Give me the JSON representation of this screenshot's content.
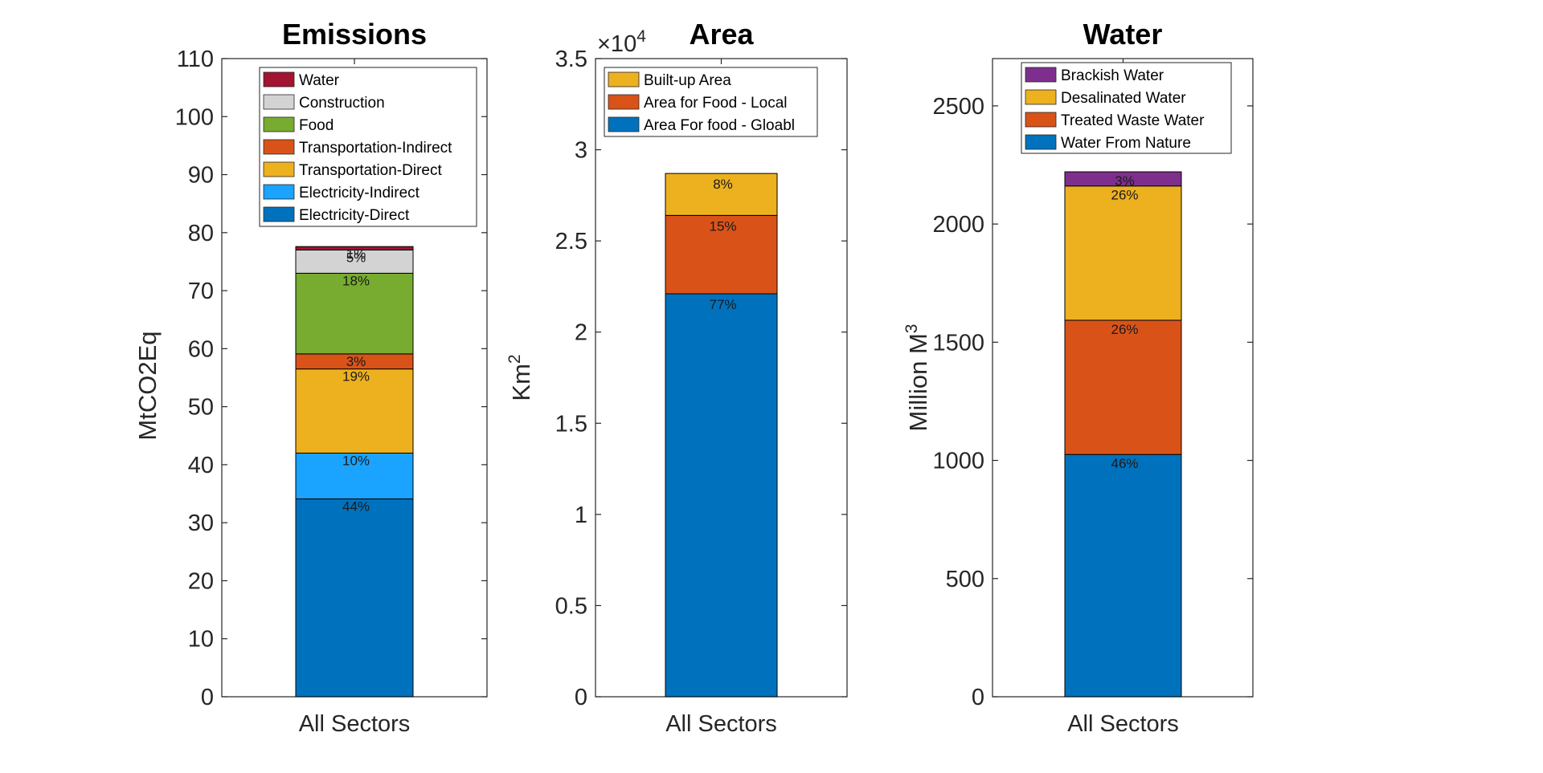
{
  "chart_data": [
    {
      "type": "bar",
      "stacked": true,
      "title": "Emissions",
      "xlabel": "",
      "ylabel": "MtCO2Eq",
      "categories": [
        "All Sectors"
      ],
      "ylim": [
        0,
        110
      ],
      "yticks": [
        "0",
        "10",
        "20",
        "30",
        "40",
        "50",
        "60",
        "70",
        "80",
        "90",
        "100",
        "110"
      ],
      "legend": "top",
      "series": [
        {
          "name": "Electricity-Direct",
          "values": [
            34.1
          ],
          "label": "44%",
          "color": "#0072BD"
        },
        {
          "name": "Electricity-Indirect",
          "values": [
            7.9
          ],
          "label": "10%",
          "color": "#1AA3FF"
        },
        {
          "name": "Transportation-Direct",
          "values": [
            14.5
          ],
          "label": "19%",
          "color": "#EDB120"
        },
        {
          "name": "Transportation-Indirect",
          "values": [
            2.6
          ],
          "label": "3%",
          "color": "#D95319"
        },
        {
          "name": "Food",
          "values": [
            13.9
          ],
          "label": "18%",
          "color": "#77AC30"
        },
        {
          "name": "Construction",
          "values": [
            4.0
          ],
          "label": "5%",
          "color": "#D3D3D3"
        },
        {
          "name": "Water",
          "values": [
            0.6
          ],
          "label": "1%",
          "color": "#A2142F"
        }
      ]
    },
    {
      "type": "bar",
      "stacked": true,
      "title": "Area",
      "xlabel": "",
      "ylabel_base": "Km",
      "ylabel_sup": "2",
      "exponent_base": "×10",
      "exponent_sup": "4",
      "categories": [
        "All Sectors"
      ],
      "ylim": [
        0,
        3.5
      ],
      "yticks": [
        "0",
        "0.5",
        "1",
        "1.5",
        "2",
        "2.5",
        "3",
        "3.5"
      ],
      "legend": "top",
      "series": [
        {
          "name": "Area For food - Gloabl",
          "values": [
            2.21
          ],
          "label": "77%",
          "color": "#0072BD"
        },
        {
          "name": "Area for Food - Local",
          "values": [
            0.43
          ],
          "label": "15%",
          "color": "#D95319"
        },
        {
          "name": "Built-up Area",
          "values": [
            0.23
          ],
          "label": "8%",
          "color": "#EDB120"
        }
      ]
    },
    {
      "type": "bar",
      "stacked": true,
      "title": "Water",
      "xlabel": "",
      "ylabel_base": "Million M",
      "ylabel_sup": "3",
      "categories": [
        "All Sectors"
      ],
      "ylim": [
        0,
        2700
      ],
      "yticks": [
        "0",
        "500",
        "1000",
        "1500",
        "2000",
        "2500"
      ],
      "ytick_values": [
        0,
        500,
        1000,
        1500,
        2000,
        2500
      ],
      "legend": "top",
      "series": [
        {
          "name": "Water From Nature",
          "values": [
            1025
          ],
          "label": "46%",
          "color": "#0072BD"
        },
        {
          "name": "Treated Waste Water",
          "values": [
            568
          ],
          "label": "26%",
          "color": "#D95319"
        },
        {
          "name": "Desalinated Water",
          "values": [
            568
          ],
          "label": "26%",
          "color": "#EDB120"
        },
        {
          "name": "Brackish Water",
          "values": [
            60
          ],
          "label": "3%",
          "color": "#7E2F8E"
        }
      ]
    }
  ]
}
